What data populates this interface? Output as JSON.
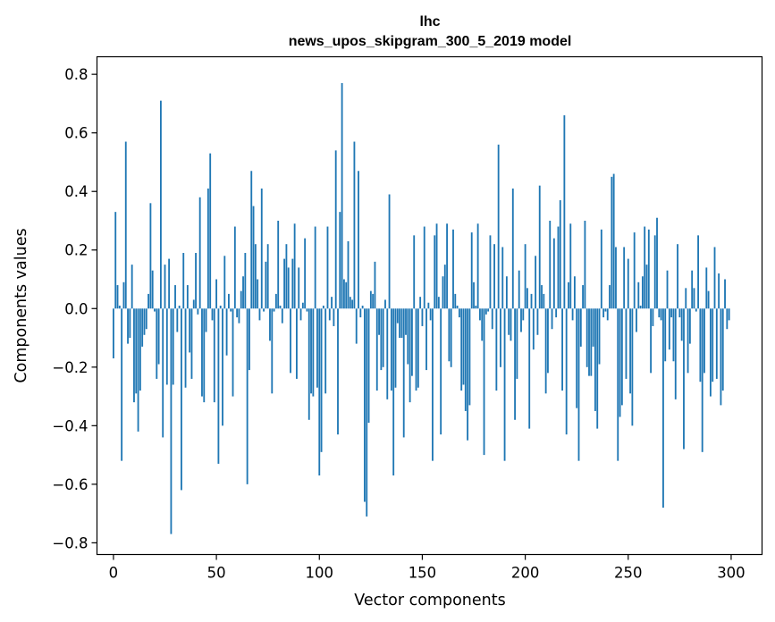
{
  "chart_data": {
    "type": "bar",
    "title_lines": [
      "lhc",
      "news_upos_skipgram_300_5_2019 model"
    ],
    "xlabel": "Vector components",
    "ylabel": "Components values",
    "xlim": [
      -8,
      315
    ],
    "ylim": [
      -0.84,
      0.86
    ],
    "xticks": [
      0,
      50,
      100,
      150,
      200,
      250,
      300
    ],
    "yticks": [
      -0.8,
      -0.6,
      -0.4,
      -0.2,
      0.0,
      0.2,
      0.4,
      0.6,
      0.8
    ],
    "ytick_labels": [
      "−0.8",
      "−0.6",
      "−0.4",
      "−0.2",
      "0.0",
      "0.2",
      "0.4",
      "0.6",
      "0.8"
    ],
    "grid": false,
    "bar_color": "#1f77b4",
    "values": [
      -0.17,
      0.33,
      0.08,
      0.01,
      -0.52,
      0.09,
      0.57,
      -0.12,
      -0.1,
      0.15,
      -0.32,
      -0.29,
      -0.42,
      -0.28,
      -0.13,
      -0.09,
      -0.07,
      0.05,
      0.36,
      0.13,
      -0.01,
      -0.24,
      -0.19,
      0.71,
      -0.44,
      0.15,
      -0.26,
      0.17,
      -0.77,
      -0.26,
      0.08,
      -0.08,
      0.01,
      -0.62,
      0.19,
      -0.27,
      0.08,
      -0.15,
      -0.24,
      0.03,
      0.19,
      -0.02,
      0.38,
      -0.3,
      -0.32,
      -0.08,
      0.41,
      0.53,
      -0.04,
      -0.32,
      0.1,
      -0.53,
      0.01,
      -0.4,
      0.18,
      -0.16,
      0.05,
      -0.01,
      -0.3,
      0.28,
      -0.03,
      -0.05,
      0.06,
      0.11,
      0.19,
      -0.6,
      -0.21,
      0.47,
      0.35,
      0.22,
      0.1,
      -0.04,
      0.41,
      -0.01,
      0.16,
      0.22,
      -0.11,
      -0.29,
      -0.01,
      0.05,
      0.3,
      0.01,
      -0.05,
      0.17,
      0.22,
      0.14,
      -0.22,
      0.17,
      0.29,
      -0.24,
      0.14,
      -0.04,
      0.02,
      0.24,
      -0.01,
      -0.38,
      -0.29,
      -0.3,
      0.28,
      -0.27,
      -0.57,
      -0.49,
      0.01,
      -0.29,
      0.28,
      -0.04,
      0.04,
      -0.06,
      0.54,
      -0.43,
      0.33,
      0.77,
      0.1,
      0.09,
      0.23,
      0.04,
      0.03,
      0.57,
      -0.12,
      0.47,
      -0.03,
      0.01,
      -0.66,
      -0.71,
      -0.39,
      0.06,
      0.05,
      0.16,
      -0.28,
      -0.09,
      -0.21,
      -0.2,
      0.03,
      -0.31,
      0.39,
      -0.28,
      -0.57,
      -0.27,
      -0.05,
      -0.1,
      -0.1,
      -0.44,
      -0.09,
      -0.19,
      -0.32,
      -0.23,
      0.25,
      -0.28,
      -0.27,
      0.04,
      -0.06,
      0.28,
      -0.21,
      0.02,
      -0.04,
      -0.52,
      0.25,
      0.29,
      0.04,
      -0.43,
      0.11,
      0.15,
      0.29,
      -0.18,
      -0.2,
      0.27,
      0.05,
      0.01,
      -0.03,
      -0.28,
      -0.26,
      -0.35,
      -0.45,
      -0.33,
      0.26,
      0.09,
      0.01,
      0.29,
      -0.04,
      -0.11,
      -0.5,
      -0.02,
      -0.01,
      0.25,
      -0.07,
      0.22,
      -0.28,
      0.56,
      -0.2,
      0.21,
      -0.52,
      0.11,
      -0.09,
      -0.11,
      0.41,
      -0.38,
      -0.24,
      0.13,
      -0.08,
      -0.04,
      0.22,
      0.07,
      -0.41,
      0.05,
      -0.14,
      0.18,
      -0.09,
      0.42,
      0.08,
      0.05,
      -0.29,
      -0.22,
      0.3,
      -0.07,
      0.24,
      -0.03,
      0.28,
      0.37,
      -0.28,
      0.66,
      -0.43,
      0.09,
      0.29,
      -0.04,
      0.11,
      -0.34,
      -0.52,
      -0.13,
      0.08,
      0.3,
      -0.2,
      -0.23,
      -0.23,
      -0.13,
      -0.35,
      -0.41,
      -0.19,
      0.27,
      -0.03,
      -0.01,
      -0.04,
      0.08,
      0.45,
      0.46,
      0.21,
      -0.52,
      -0.37,
      -0.33,
      0.21,
      -0.24,
      0.17,
      -0.29,
      -0.4,
      0.26,
      -0.08,
      0.09,
      0.01,
      0.11,
      0.28,
      0.15,
      0.27,
      -0.22,
      -0.06,
      0.25,
      0.31,
      -0.03,
      -0.04,
      -0.68,
      -0.18,
      0.13,
      -0.14,
      -0.03,
      -0.18,
      -0.31,
      0.22,
      -0.03,
      -0.11,
      -0.48,
      0.07,
      -0.22,
      -0.12,
      0.13,
      0.07,
      -0.01,
      0.25,
      -0.25,
      -0.49,
      -0.22,
      0.14,
      0.06,
      -0.3,
      -0.25,
      0.21,
      -0.24,
      0.12,
      -0.33,
      -0.28,
      0.1,
      -0.07,
      -0.04
    ]
  }
}
